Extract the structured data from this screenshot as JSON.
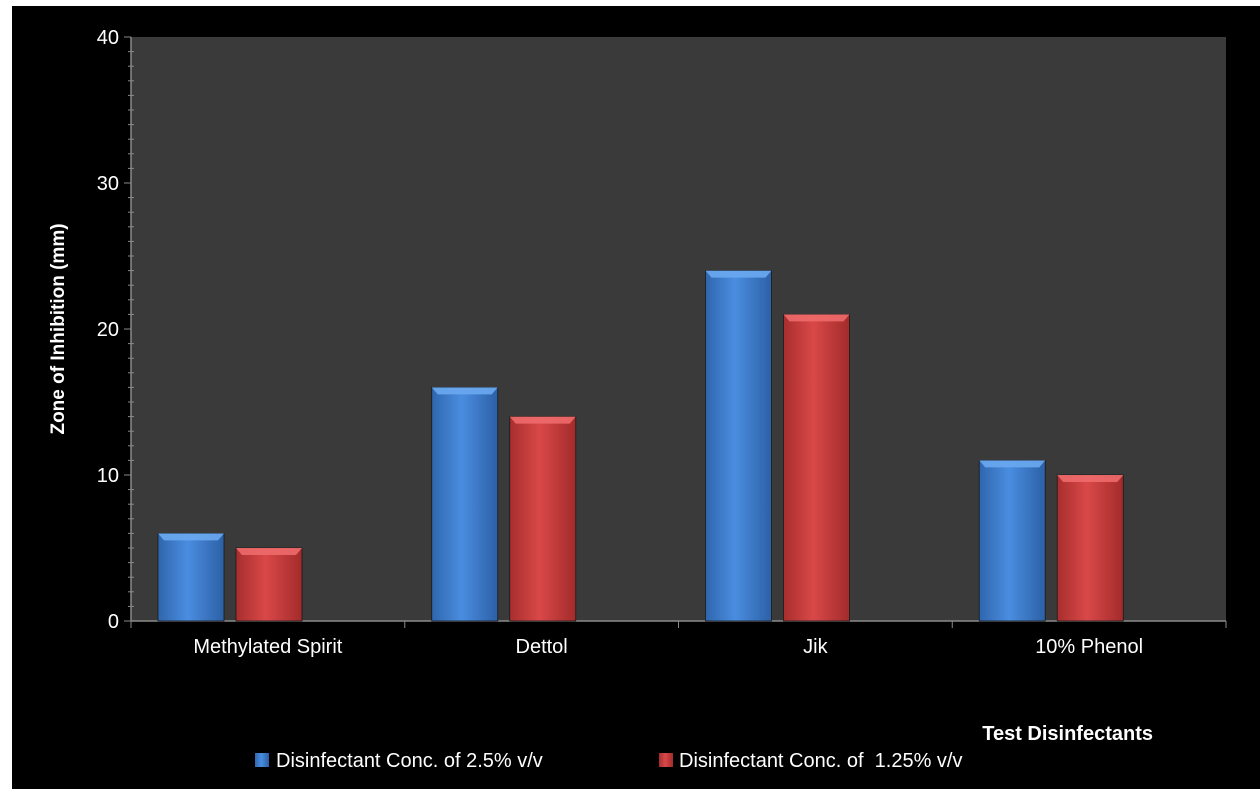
{
  "chart_data": {
    "type": "bar",
    "title": "",
    "xlabel": "Test Disinfectants",
    "ylabel": "Zone of Inhibition (mm)",
    "categories": [
      "Methylated Spirit",
      "Dettol",
      "Jik",
      "10% Phenol"
    ],
    "series": [
      {
        "name": "Disinfectant Conc. of 2.5% v/v",
        "values": [
          6,
          16,
          24,
          11
        ],
        "color": "#3f7fd0"
      },
      {
        "name": "Disinfectant Conc. of  1.25% v/v",
        "values": [
          5,
          14,
          21,
          10
        ],
        "color": "#cc3b3b"
      }
    ],
    "ylim": [
      0,
      40
    ],
    "yticks": [
      0,
      10,
      20,
      30,
      40
    ],
    "grid": false,
    "legend": "bottom",
    "background": "#3a3a3a",
    "outer_background": "#000000",
    "text_color": "#ffffff"
  }
}
